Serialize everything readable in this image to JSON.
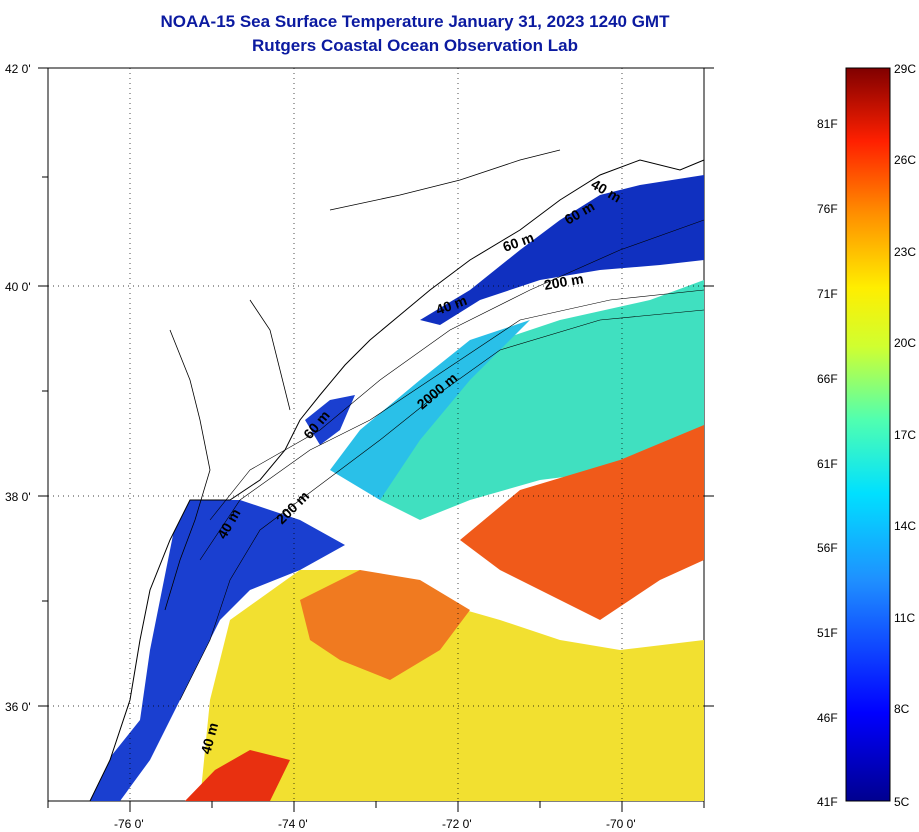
{
  "title": "NOAA-15 Sea Surface Temperature January 31, 2023 1240 GMT",
  "subtitle": "Rutgers Coastal Ocean Observation Lab",
  "axes": {
    "lat_labels": [
      "42 0'",
      "40 0'",
      "38 0'",
      "36 0'"
    ],
    "lon_labels": [
      "-76 0'",
      "-74 0'",
      "-72 0'",
      "-70 0'"
    ]
  },
  "colorbar": {
    "celsius": [
      "29C",
      "26C",
      "23C",
      "20C",
      "17C",
      "14C",
      "11C",
      "8C",
      "5C"
    ],
    "fahrenheit": [
      "81F",
      "76F",
      "71F",
      "66F",
      "61F",
      "56F",
      "51F",
      "46F",
      "41F"
    ]
  },
  "contour_labels": [
    "200 m",
    "60 m",
    "40 m",
    "2000 m",
    "60 m",
    "200 m",
    "40 m",
    "40 m",
    "60 m",
    "40 m"
  ],
  "colors": {
    "title": "#0b1aa0",
    "cold": "#1030c0",
    "cool": "#2aa0e0",
    "mid": "#40e0c0",
    "warm": "#f0e020",
    "hot": "#f04010"
  }
}
